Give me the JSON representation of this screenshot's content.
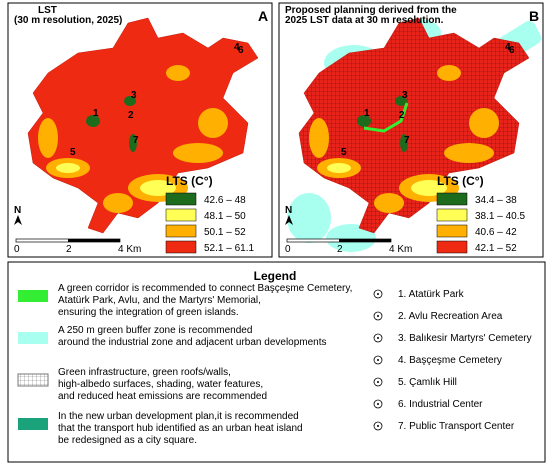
{
  "panels": [
    {
      "title_lines": [
        "LST",
        "(30 m resolution, 2025)"
      ],
      "letter": "A",
      "legend_title": "LTS (C°)",
      "classes": [
        "42.6 – 48",
        "48.1 – 50",
        "50.1 – 52",
        "52.1 – 61.1"
      ],
      "north": "N",
      "scale": [
        "0",
        "2",
        "4 Km"
      ],
      "points": [
        "1",
        "2",
        "3",
        "4",
        "5",
        "6",
        "7"
      ]
    },
    {
      "title_lines": [
        "Proposed planning derived from the",
        "2025 LST data at 30 m resolution."
      ],
      "letter": "B",
      "legend_title": "LTS (C°)",
      "classes": [
        "34.4 – 38",
        "38.1 – 40.5",
        "40.6 – 42",
        "42.1 – 52"
      ],
      "north": "N",
      "scale": [
        "0",
        "2",
        "4 Km"
      ],
      "points": [
        "1",
        "2",
        "3",
        "4",
        "5",
        "6",
        "7"
      ]
    }
  ],
  "legend": {
    "title": "Legend",
    "items": [
      [
        "A green corridor is recommended to connect Başçeşme Cemetery,",
        "Atatürk Park, Avlu, and the Martyrs' Memorial,",
        "ensuring the integration of green islands."
      ],
      [
        "A 250 m green buffer zone is recommended",
        "around the industrial zone and adjacent urban developments"
      ],
      [
        "Green infrastructure, green roofs/walls,",
        " high-albedo surfaces, shading, water features,",
        " and reduced heat emissions are recommended"
      ],
      [
        "In the new urban development plan,it is recommended",
        "that the transport hub identified as an urban heat island",
        " be redesigned as a city square."
      ]
    ],
    "places": [
      "1. Atatürk Park",
      "2. Avlu Recreation Area",
      "3. Balıkesir Martyrs' Cemetery",
      "4. Başçeşme Cemetery",
      "5. Çamlık  Hill",
      "6. Industrial Center",
      "7. Public Transport Center"
    ]
  }
}
